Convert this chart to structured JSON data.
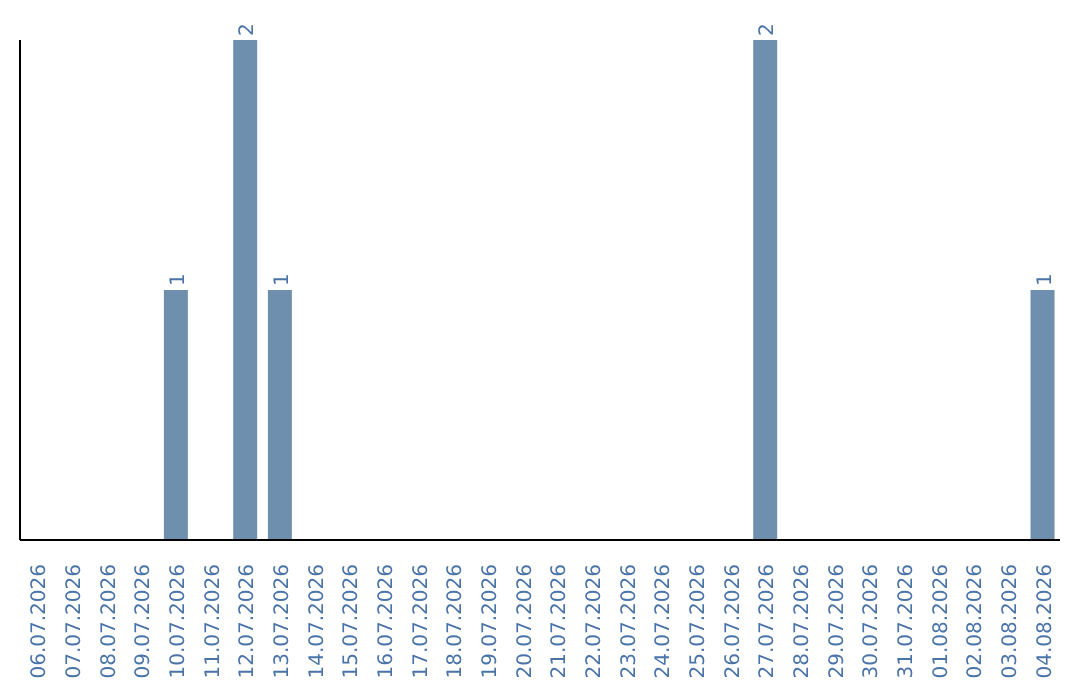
{
  "chart_data": {
    "type": "bar",
    "categories": [
      "06.07.2026",
      "07.07.2026",
      "08.07.2026",
      "09.07.2026",
      "10.07.2026",
      "11.07.2026",
      "12.07.2026",
      "13.07.2026",
      "14.07.2026",
      "15.07.2026",
      "16.07.2026",
      "17.07.2026",
      "18.07.2026",
      "19.07.2026",
      "20.07.2026",
      "21.07.2026",
      "22.07.2026",
      "23.07.2026",
      "24.07.2026",
      "25.07.2026",
      "26.07.2026",
      "27.07.2026",
      "28.07.2026",
      "29.07.2026",
      "30.07.2026",
      "31.07.2026",
      "01.08.2026",
      "02.08.2026",
      "03.08.2026",
      "04.08.2026"
    ],
    "values": [
      0,
      0,
      0,
      0,
      1,
      0,
      2,
      1,
      0,
      0,
      0,
      0,
      0,
      0,
      0,
      0,
      0,
      0,
      0,
      0,
      0,
      2,
      0,
      0,
      0,
      0,
      0,
      0,
      0,
      1
    ],
    "value_labels": [
      null,
      null,
      null,
      null,
      "1",
      null,
      "2",
      "1",
      null,
      null,
      null,
      null,
      null,
      null,
      null,
      null,
      null,
      null,
      null,
      null,
      null,
      "2",
      null,
      null,
      null,
      null,
      null,
      null,
      null,
      "1"
    ],
    "color": "#6e8fad",
    "ylim": [
      0,
      2
    ],
    "tick_labels": "x",
    "grid": false
  }
}
